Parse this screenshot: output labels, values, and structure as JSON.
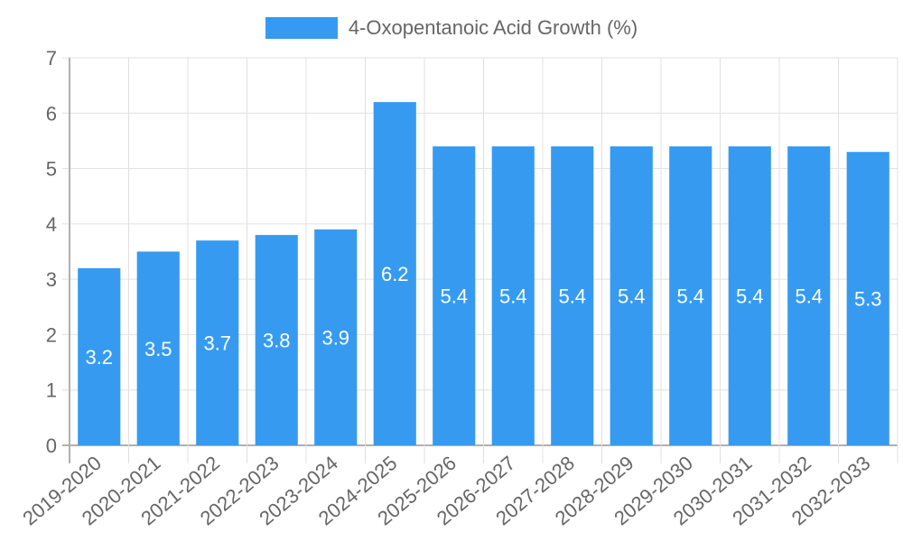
{
  "chart_data": {
    "type": "bar",
    "title": "",
    "xlabel": "",
    "ylabel": "",
    "ylim": [
      0,
      7
    ],
    "yticks": [
      0,
      1,
      2,
      3,
      4,
      5,
      6,
      7
    ],
    "grid": true,
    "legend_position": "top",
    "categories": [
      "2019-2020",
      "2020-2021",
      "2021-2022",
      "2022-2023",
      "2023-2024",
      "2024-2025",
      "2025-2026",
      "2026-2027",
      "2027-2028",
      "2028-2029",
      "2029-2030",
      "2030-2031",
      "2031-2032",
      "2032-2033"
    ],
    "series": [
      {
        "name": "4-Oxopentanoic Acid Growth (%)",
        "color": "#369bf0",
        "values": [
          3.2,
          3.5,
          3.7,
          3.8,
          3.9,
          6.2,
          5.4,
          5.4,
          5.4,
          5.4,
          5.4,
          5.4,
          5.4,
          5.3
        ]
      }
    ],
    "data_labels": [
      "3.2",
      "3.5",
      "3.7",
      "3.8",
      "3.9",
      "6.2",
      "5.4",
      "5.4",
      "5.4",
      "5.4",
      "5.4",
      "5.4",
      "5.4",
      "5.3"
    ]
  },
  "legend": {
    "label": "4-Oxopentanoic Acid Growth (%)",
    "color": "#369bf0"
  },
  "colors": {
    "bar": "#369bf0",
    "grid": "#e0e0e0",
    "axis": "#b0b0b0",
    "tick_text": "#666666",
    "label_text": "#ffffff"
  }
}
